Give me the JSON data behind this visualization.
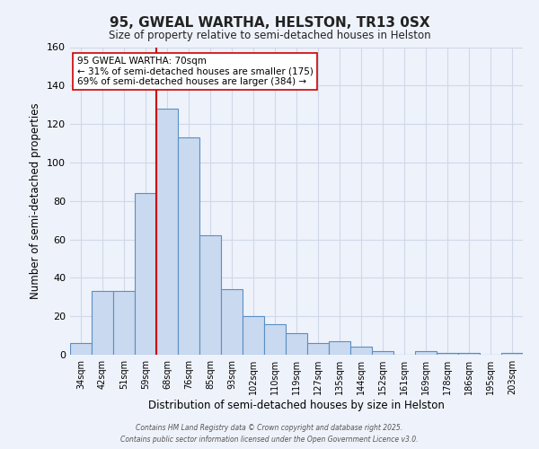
{
  "title": "95, GWEAL WARTHA, HELSTON, TR13 0SX",
  "subtitle": "Size of property relative to semi-detached houses in Helston",
  "xlabel": "Distribution of semi-detached houses by size in Helston",
  "ylabel": "Number of semi-detached properties",
  "categories": [
    "34sqm",
    "42sqm",
    "51sqm",
    "59sqm",
    "68sqm",
    "76sqm",
    "85sqm",
    "93sqm",
    "102sqm",
    "110sqm",
    "119sqm",
    "127sqm",
    "135sqm",
    "144sqm",
    "152sqm",
    "161sqm",
    "169sqm",
    "178sqm",
    "186sqm",
    "195sqm",
    "203sqm"
  ],
  "values": [
    6,
    33,
    33,
    84,
    128,
    113,
    62,
    34,
    20,
    16,
    11,
    6,
    7,
    4,
    2,
    0,
    2,
    1,
    1,
    0,
    1
  ],
  "bar_color": "#c9d9f0",
  "bar_edge_color": "#5a8fc4",
  "red_line_index": 4,
  "annotation_title": "95 GWEAL WARTHA: 70sqm",
  "annotation_line1": "← 31% of semi-detached houses are smaller (175)",
  "annotation_line2": "69% of semi-detached houses are larger (384) →",
  "annotation_box_color": "#ffffff",
  "annotation_box_edge": "#cc0000",
  "red_line_color": "#cc0000",
  "ylim": [
    0,
    160
  ],
  "yticks": [
    0,
    20,
    40,
    60,
    80,
    100,
    120,
    140,
    160
  ],
  "grid_color": "#d0d8e8",
  "bg_color": "#eef2fa",
  "footer1": "Contains HM Land Registry data © Crown copyright and database right 2025.",
  "footer2": "Contains public sector information licensed under the Open Government Licence v3.0."
}
